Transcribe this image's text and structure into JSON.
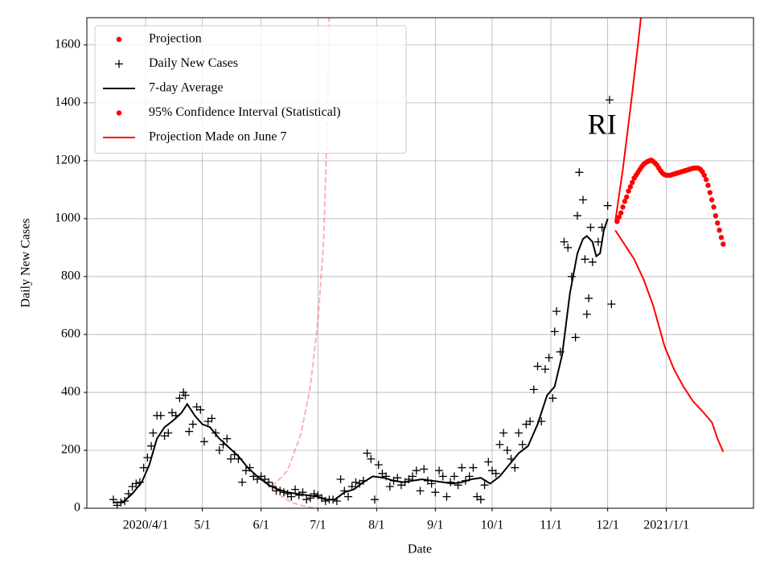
{
  "chart_data": {
    "type": "line",
    "xlabel": "Date",
    "ylabel": "Daily New Cases",
    "xlim": [
      "2020-03-01",
      "2021-02-16"
    ],
    "ylim": [
      0,
      1694
    ],
    "xticks": [
      {
        "value": "2020-04-01",
        "label": "2020/4/1"
      },
      {
        "value": "2020-05-01",
        "label": "5/1"
      },
      {
        "value": "2020-06-01",
        "label": "6/1"
      },
      {
        "value": "2020-07-01",
        "label": "7/1"
      },
      {
        "value": "2020-08-01",
        "label": "8/1"
      },
      {
        "value": "2020-09-01",
        "label": "9/1"
      },
      {
        "value": "2020-10-01",
        "label": "10/1"
      },
      {
        "value": "2020-11-01",
        "label": "11/1"
      },
      {
        "value": "2020-12-01",
        "label": "12/1"
      },
      {
        "value": "2021-01-01",
        "label": "2021/1/1"
      }
    ],
    "yticks": [
      0,
      200,
      400,
      600,
      800,
      1000,
      1200,
      1400,
      1600
    ],
    "grid": true,
    "legend": "upper left",
    "annotations": [
      {
        "text": "RI",
        "x": "2020-11-28",
        "y": 1315
      }
    ],
    "series": [
      {
        "name": "Projection",
        "color": "#ff0000",
        "style": "dots",
        "marker": "dot",
        "x": [
          "2020-12-06",
          "2020-12-07",
          "2020-12-08",
          "2020-12-09",
          "2020-12-10",
          "2020-12-11",
          "2020-12-12",
          "2020-12-13",
          "2020-12-14",
          "2020-12-15",
          "2020-12-16",
          "2020-12-17",
          "2020-12-18",
          "2020-12-19",
          "2020-12-20",
          "2020-12-21",
          "2020-12-22",
          "2020-12-23",
          "2020-12-24",
          "2020-12-25",
          "2020-12-26",
          "2020-12-27",
          "2020-12-28",
          "2020-12-29",
          "2020-12-30",
          "2020-12-31",
          "2021-01-01",
          "2021-01-02",
          "2021-01-03",
          "2021-01-04",
          "2021-01-05",
          "2021-01-06",
          "2021-01-07",
          "2021-01-08",
          "2021-01-09",
          "2021-01-10",
          "2021-01-11",
          "2021-01-12",
          "2021-01-13",
          "2021-01-14",
          "2021-01-15",
          "2021-01-16",
          "2021-01-17",
          "2021-01-18",
          "2021-01-19",
          "2021-01-20",
          "2021-01-21",
          "2021-01-22",
          "2021-01-23",
          "2021-01-24",
          "2021-01-25",
          "2021-01-26",
          "2021-01-27",
          "2021-01-28",
          "2021-01-29",
          "2021-01-30",
          "2021-01-31"
        ],
        "values": [
          990,
          1005,
          1020,
          1040,
          1060,
          1075,
          1095,
          1110,
          1125,
          1140,
          1150,
          1160,
          1170,
          1180,
          1188,
          1193,
          1197,
          1200,
          1202,
          1198,
          1192,
          1185,
          1175,
          1165,
          1157,
          1152,
          1150,
          1150,
          1150,
          1152,
          1154,
          1156,
          1158,
          1160,
          1162,
          1164,
          1166,
          1168,
          1170,
          1172,
          1174,
          1175,
          1175,
          1174,
          1170,
          1162,
          1150,
          1135,
          1115,
          1090,
          1065,
          1040,
          1010,
          985,
          960,
          935,
          912
        ]
      },
      {
        "name": "Daily New Cases",
        "color": "#000000",
        "style": "plus",
        "marker": "plus",
        "x": [
          "2020-03-15",
          "2020-03-17",
          "2020-03-19",
          "2020-03-21",
          "2020-03-23",
          "2020-03-25",
          "2020-03-27",
          "2020-03-29",
          "2020-03-31",
          "2020-04-02",
          "2020-04-04",
          "2020-04-05",
          "2020-04-07",
          "2020-04-09",
          "2020-04-11",
          "2020-04-13",
          "2020-04-15",
          "2020-04-17",
          "2020-04-19",
          "2020-04-21",
          "2020-04-22",
          "2020-04-24",
          "2020-04-26",
          "2020-04-28",
          "2020-04-30",
          "2020-05-02",
          "2020-05-04",
          "2020-05-06",
          "2020-05-08",
          "2020-05-10",
          "2020-05-12",
          "2020-05-14",
          "2020-05-16",
          "2020-05-18",
          "2020-05-20",
          "2020-05-22",
          "2020-05-24",
          "2020-05-26",
          "2020-05-28",
          "2020-05-30",
          "2020-06-01",
          "2020-06-03",
          "2020-06-05",
          "2020-06-07",
          "2020-06-09",
          "2020-06-11",
          "2020-06-13",
          "2020-06-15",
          "2020-06-17",
          "2020-06-19",
          "2020-06-21",
          "2020-06-23",
          "2020-06-25",
          "2020-06-27",
          "2020-06-29",
          "2020-07-01",
          "2020-07-03",
          "2020-07-05",
          "2020-07-07",
          "2020-07-09",
          "2020-07-11",
          "2020-07-13",
          "2020-07-15",
          "2020-07-17",
          "2020-07-19",
          "2020-07-21",
          "2020-07-23",
          "2020-07-25",
          "2020-07-27",
          "2020-07-29",
          "2020-07-31",
          "2020-08-02",
          "2020-08-04",
          "2020-08-06",
          "2020-08-08",
          "2020-08-10",
          "2020-08-12",
          "2020-08-14",
          "2020-08-16",
          "2020-08-18",
          "2020-08-20",
          "2020-08-22",
          "2020-08-24",
          "2020-08-26",
          "2020-08-28",
          "2020-08-30",
          "2020-09-01",
          "2020-09-03",
          "2020-09-05",
          "2020-09-07",
          "2020-09-09",
          "2020-09-11",
          "2020-09-13",
          "2020-09-15",
          "2020-09-17",
          "2020-09-19",
          "2020-09-21",
          "2020-09-23",
          "2020-09-25",
          "2020-09-27",
          "2020-09-29",
          "2020-10-01",
          "2020-10-03",
          "2020-10-05",
          "2020-10-07",
          "2020-10-09",
          "2020-10-11",
          "2020-10-13",
          "2020-10-15",
          "2020-10-17",
          "2020-10-19",
          "2020-10-21",
          "2020-10-23",
          "2020-10-25",
          "2020-10-27",
          "2020-10-29",
          "2020-10-31",
          "2020-11-02",
          "2020-11-03",
          "2020-11-04",
          "2020-11-06",
          "2020-11-08",
          "2020-11-10",
          "2020-11-12",
          "2020-11-14",
          "2020-11-15",
          "2020-11-16",
          "2020-11-18",
          "2020-11-19",
          "2020-11-20",
          "2020-11-21",
          "2020-11-22",
          "2020-11-23",
          "2020-11-26",
          "2020-11-28",
          "2020-12-01",
          "2020-12-02",
          "2020-12-03"
        ],
        "values": [
          30,
          10,
          20,
          25,
          50,
          75,
          85,
          90,
          140,
          175,
          215,
          260,
          320,
          320,
          250,
          260,
          330,
          320,
          380,
          400,
          390,
          265,
          290,
          350,
          340,
          230,
          300,
          310,
          260,
          200,
          220,
          240,
          170,
          185,
          170,
          90,
          130,
          140,
          110,
          100,
          110,
          100,
          90,
          75,
          60,
          60,
          55,
          50,
          40,
          65,
          45,
          55,
          30,
          35,
          50,
          45,
          35,
          25,
          30,
          30,
          25,
          100,
          60,
          40,
          75,
          90,
          85,
          95,
          190,
          170,
          30,
          150,
          120,
          110,
          75,
          95,
          105,
          80,
          90,
          100,
          110,
          130,
          60,
          135,
          95,
          85,
          55,
          130,
          110,
          40,
          90,
          110,
          80,
          140,
          95,
          110,
          140,
          40,
          30,
          80,
          160,
          130,
          120,
          220,
          260,
          200,
          170,
          140,
          260,
          220,
          290,
          300,
          410,
          490,
          300,
          480,
          520,
          380,
          610,
          680,
          540,
          920,
          900,
          800,
          590,
          1010,
          1160,
          1065,
          860,
          670,
          725,
          970,
          850,
          920,
          970,
          1045,
          1410,
          705
        ]
      },
      {
        "name": "7-day Average",
        "color": "#000000",
        "style": "line",
        "marker": "line",
        "x": [
          "2020-03-15",
          "2020-03-20",
          "2020-03-25",
          "2020-03-30",
          "2020-04-03",
          "2020-04-07",
          "2020-04-11",
          "2020-04-15",
          "2020-04-20",
          "2020-04-23",
          "2020-04-27",
          "2020-05-01",
          "2020-05-05",
          "2020-05-10",
          "2020-05-15",
          "2020-05-20",
          "2020-05-25",
          "2020-05-30",
          "2020-06-05",
          "2020-06-10",
          "2020-06-15",
          "2020-06-20",
          "2020-06-25",
          "2020-07-01",
          "2020-07-05",
          "2020-07-10",
          "2020-07-15",
          "2020-07-20",
          "2020-07-25",
          "2020-07-30",
          "2020-08-05",
          "2020-08-10",
          "2020-08-15",
          "2020-08-20",
          "2020-08-25",
          "2020-08-30",
          "2020-09-05",
          "2020-09-10",
          "2020-09-15",
          "2020-09-20",
          "2020-09-25",
          "2020-09-30",
          "2020-10-05",
          "2020-10-10",
          "2020-10-15",
          "2020-10-20",
          "2020-10-25",
          "2020-10-30",
          "2020-11-03",
          "2020-11-07",
          "2020-11-11",
          "2020-11-15",
          "2020-11-18",
          "2020-11-20",
          "2020-11-23",
          "2020-11-25",
          "2020-11-27",
          "2020-11-29",
          "2020-12-01"
        ],
        "values": [
          20,
          20,
          50,
          90,
          150,
          240,
          280,
          300,
          330,
          360,
          320,
          290,
          280,
          240,
          210,
          180,
          140,
          110,
          80,
          65,
          55,
          50,
          45,
          40,
          30,
          30,
          55,
          65,
          90,
          110,
          105,
          95,
          90,
          95,
          100,
          95,
          90,
          85,
          90,
          100,
          105,
          85,
          110,
          150,
          190,
          215,
          290,
          390,
          420,
          530,
          740,
          880,
          930,
          940,
          920,
          870,
          880,
          960,
          1000
        ]
      },
      {
        "name": "95% Confidence Interval (Statistical)",
        "color": "#ff0000",
        "style": "line",
        "marker": "dot",
        "x": [
          "2020-12-05",
          "2020-12-09",
          "2020-12-13",
          "2020-12-17",
          "2020-12-19"
        ],
        "values": [
          990,
          1170,
          1380,
          1600,
          1720
        ]
      },
      {
        "name": "Projection Made on June 7",
        "color": "#ff0000",
        "style": "dashed",
        "alpha": 0.3,
        "marker": "line",
        "x": [
          "2020-06-07",
          "2020-06-15",
          "2020-06-22",
          "2020-06-27",
          "2020-07-01",
          "2020-07-04",
          "2020-07-06",
          "2020-07-07"
        ],
        "values": [
          75,
          130,
          255,
          420,
          645,
          920,
          1340,
          1720
        ]
      },
      {
        "color": "#ff0000",
        "style": "line",
        "x": [
          "2020-12-05",
          "2020-12-10",
          "2020-12-15",
          "2020-12-20",
          "2020-12-25",
          "2020-12-31",
          "2021-01-05",
          "2021-01-10",
          "2021-01-15",
          "2021-01-20",
          "2021-01-25",
          "2021-01-28",
          "2021-01-31"
        ],
        "values": [
          960,
          910,
          860,
          790,
          700,
          560,
          480,
          420,
          370,
          335,
          297,
          240,
          195
        ]
      },
      {
        "color": "#ff0000",
        "style": "dashed",
        "alpha": 0.3,
        "x": [
          "2020-06-07",
          "2020-06-12",
          "2020-06-17",
          "2020-06-22",
          "2020-06-27",
          "2020-06-30",
          "2020-07-01"
        ],
        "values": [
          65,
          40,
          20,
          10,
          3,
          1,
          0
        ]
      }
    ]
  }
}
